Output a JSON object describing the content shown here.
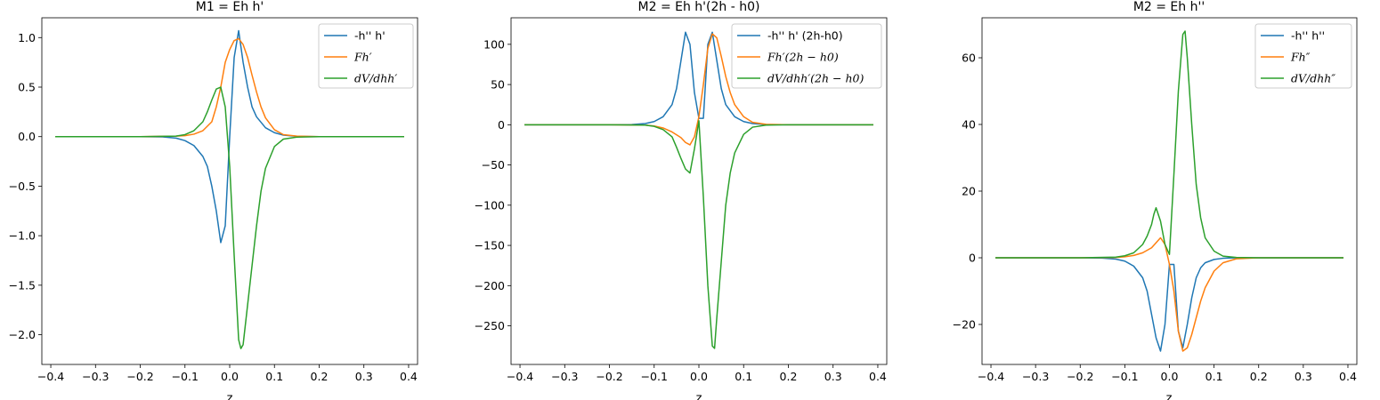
{
  "chart_data": [
    {
      "type": "line",
      "title": "M1 = Eh h'",
      "xlabel": "z",
      "ylabel": "",
      "xlim": [
        -0.42,
        0.42
      ],
      "ylim": [
        -2.3,
        1.2
      ],
      "xticks": [
        -0.4,
        -0.3,
        -0.2,
        -0.1,
        0.0,
        0.1,
        0.2,
        0.3,
        0.4
      ],
      "xtick_labels": [
        "−0.4",
        "−0.3",
        "−0.2",
        "−0.1",
        "0.0",
        "0.1",
        "0.2",
        "0.3",
        "0.4"
      ],
      "yticks": [
        -2.0,
        -1.5,
        -1.0,
        -0.5,
        0.0,
        0.5,
        1.0
      ],
      "ytick_labels": [
        "−2.0",
        "−1.5",
        "−1.0",
        "−0.5",
        "0.0",
        "0.5",
        "1.0"
      ],
      "legend_position": "top-right",
      "grid": false,
      "series": [
        {
          "name": "-h'' h'",
          "color": "#1f77b4",
          "points": [
            [
              -0.39,
              0
            ],
            [
              -0.2,
              0
            ],
            [
              -0.15,
              -0.003
            ],
            [
              -0.12,
              -0.015
            ],
            [
              -0.1,
              -0.04
            ],
            [
              -0.08,
              -0.09
            ],
            [
              -0.06,
              -0.2
            ],
            [
              -0.05,
              -0.3
            ],
            [
              -0.04,
              -0.5
            ],
            [
              -0.03,
              -0.75
            ],
            [
              -0.02,
              -1.07
            ],
            [
              -0.01,
              -0.9
            ],
            [
              0.0,
              0.0
            ],
            [
              0.01,
              0.8
            ],
            [
              0.02,
              1.07
            ],
            [
              0.03,
              0.75
            ],
            [
              0.04,
              0.5
            ],
            [
              0.05,
              0.3
            ],
            [
              0.06,
              0.2
            ],
            [
              0.08,
              0.09
            ],
            [
              0.1,
              0.04
            ],
            [
              0.12,
              0.015
            ],
            [
              0.15,
              0.003
            ],
            [
              0.2,
              0
            ],
            [
              0.39,
              0
            ]
          ]
        },
        {
          "name": "Fh′",
          "color": "#ff7f0e",
          "points": [
            [
              -0.39,
              0
            ],
            [
              -0.2,
              0
            ],
            [
              -0.12,
              0.005
            ],
            [
              -0.1,
              0.01
            ],
            [
              -0.08,
              0.025
            ],
            [
              -0.06,
              0.06
            ],
            [
              -0.04,
              0.15
            ],
            [
              -0.03,
              0.3
            ],
            [
              -0.02,
              0.5
            ],
            [
              -0.01,
              0.75
            ],
            [
              0.0,
              0.88
            ],
            [
              0.01,
              0.97
            ],
            [
              0.02,
              0.99
            ],
            [
              0.03,
              0.93
            ],
            [
              0.04,
              0.8
            ],
            [
              0.05,
              0.62
            ],
            [
              0.06,
              0.45
            ],
            [
              0.07,
              0.3
            ],
            [
              0.08,
              0.19
            ],
            [
              0.1,
              0.07
            ],
            [
              0.12,
              0.02
            ],
            [
              0.15,
              0.005
            ],
            [
              0.2,
              0
            ],
            [
              0.39,
              0
            ]
          ]
        },
        {
          "name": "dV/dhh′",
          "color": "#2ca02c",
          "points": [
            [
              -0.39,
              0
            ],
            [
              -0.2,
              0
            ],
            [
              -0.12,
              0.005
            ],
            [
              -0.1,
              0.02
            ],
            [
              -0.08,
              0.06
            ],
            [
              -0.06,
              0.15
            ],
            [
              -0.05,
              0.25
            ],
            [
              -0.04,
              0.37
            ],
            [
              -0.03,
              0.48
            ],
            [
              -0.02,
              0.5
            ],
            [
              -0.01,
              0.3
            ],
            [
              0.0,
              -0.3
            ],
            [
              0.01,
              -1.2
            ],
            [
              0.02,
              -2.05
            ],
            [
              0.025,
              -2.14
            ],
            [
              0.03,
              -2.1
            ],
            [
              0.04,
              -1.7
            ],
            [
              0.05,
              -1.3
            ],
            [
              0.06,
              -0.9
            ],
            [
              0.07,
              -0.55
            ],
            [
              0.08,
              -0.32
            ],
            [
              0.1,
              -0.1
            ],
            [
              0.12,
              -0.025
            ],
            [
              0.15,
              -0.005
            ],
            [
              0.2,
              0
            ],
            [
              0.39,
              0
            ]
          ]
        }
      ]
    },
    {
      "type": "line",
      "title": "M2 = Eh h'(2h - h0)",
      "xlabel": "z",
      "ylabel": "",
      "xlim": [
        -0.42,
        0.42
      ],
      "ylim": [
        -298,
        133
      ],
      "xticks": [
        -0.4,
        -0.3,
        -0.2,
        -0.1,
        0.0,
        0.1,
        0.2,
        0.3,
        0.4
      ],
      "xtick_labels": [
        "−0.4",
        "−0.3",
        "−0.2",
        "−0.1",
        "0.0",
        "0.1",
        "0.2",
        "0.3",
        "0.4"
      ],
      "yticks": [
        -250,
        -200,
        -150,
        -100,
        -50,
        0,
        50,
        100
      ],
      "ytick_labels": [
        "−250",
        "−200",
        "−150",
        "−100",
        "−50",
        "0",
        "50",
        "100"
      ],
      "legend_position": "top-right",
      "grid": false,
      "series": [
        {
          "name": "-h'' h' (2h-h0)",
          "color": "#1f77b4",
          "points": [
            [
              -0.39,
              0
            ],
            [
              -0.2,
              0
            ],
            [
              -0.15,
              0.3
            ],
            [
              -0.12,
              1.5
            ],
            [
              -0.1,
              4
            ],
            [
              -0.08,
              10
            ],
            [
              -0.06,
              25
            ],
            [
              -0.05,
              45
            ],
            [
              -0.04,
              80
            ],
            [
              -0.03,
              115
            ],
            [
              -0.02,
              100
            ],
            [
              -0.01,
              40
            ],
            [
              0.0,
              8
            ],
            [
              0.01,
              8
            ],
            [
              0.02,
              100
            ],
            [
              0.03,
              115
            ],
            [
              0.04,
              80
            ],
            [
              0.05,
              45
            ],
            [
              0.06,
              25
            ],
            [
              0.08,
              10
            ],
            [
              0.1,
              4
            ],
            [
              0.12,
              1.5
            ],
            [
              0.15,
              0.3
            ],
            [
              0.2,
              0
            ],
            [
              0.39,
              0
            ]
          ]
        },
        {
          "name": "Fh′(2h − h0)",
          "color": "#ff7f0e",
          "points": [
            [
              -0.39,
              0
            ],
            [
              -0.2,
              0
            ],
            [
              -0.12,
              -0.5
            ],
            [
              -0.1,
              -1.5
            ],
            [
              -0.08,
              -4
            ],
            [
              -0.06,
              -9
            ],
            [
              -0.04,
              -16
            ],
            [
              -0.03,
              -22
            ],
            [
              -0.02,
              -25
            ],
            [
              -0.01,
              -15
            ],
            [
              0.0,
              10
            ],
            [
              0.01,
              50
            ],
            [
              0.02,
              95
            ],
            [
              0.03,
              113
            ],
            [
              0.04,
              108
            ],
            [
              0.05,
              85
            ],
            [
              0.06,
              60
            ],
            [
              0.07,
              40
            ],
            [
              0.08,
              25
            ],
            [
              0.1,
              10
            ],
            [
              0.12,
              3
            ],
            [
              0.15,
              0.5
            ],
            [
              0.2,
              0
            ],
            [
              0.39,
              0
            ]
          ]
        },
        {
          "name": "dV/dhh′(2h − h0)",
          "color": "#2ca02c",
          "points": [
            [
              -0.39,
              0
            ],
            [
              -0.2,
              0
            ],
            [
              -0.12,
              -0.5
            ],
            [
              -0.1,
              -2
            ],
            [
              -0.08,
              -6
            ],
            [
              -0.06,
              -15
            ],
            [
              -0.05,
              -28
            ],
            [
              -0.04,
              -42
            ],
            [
              -0.03,
              -55
            ],
            [
              -0.02,
              -60
            ],
            [
              -0.01,
              -30
            ],
            [
              0.0,
              5
            ],
            [
              0.01,
              -90
            ],
            [
              0.02,
              -200
            ],
            [
              0.03,
              -275
            ],
            [
              0.035,
              -278
            ],
            [
              0.04,
              -240
            ],
            [
              0.05,
              -170
            ],
            [
              0.06,
              -100
            ],
            [
              0.07,
              -60
            ],
            [
              0.08,
              -35
            ],
            [
              0.1,
              -12
            ],
            [
              0.12,
              -3
            ],
            [
              0.15,
              -0.5
            ],
            [
              0.2,
              0
            ],
            [
              0.39,
              0
            ]
          ]
        }
      ]
    },
    {
      "type": "line",
      "title": "M2 = Eh h''",
      "xlabel": "z",
      "ylabel": "",
      "xlim": [
        -0.42,
        0.42
      ],
      "ylim": [
        -32,
        72
      ],
      "xticks": [
        -0.4,
        -0.3,
        -0.2,
        -0.1,
        0.0,
        0.1,
        0.2,
        0.3,
        0.4
      ],
      "xtick_labels": [
        "−0.4",
        "−0.3",
        "−0.2",
        "−0.1",
        "0.0",
        "0.1",
        "0.2",
        "0.3",
        "0.4"
      ],
      "yticks": [
        -20,
        0,
        20,
        40,
        60
      ],
      "ytick_labels": [
        "−20",
        "0",
        "20",
        "40",
        "60"
      ],
      "legend_position": "top-right",
      "grid": false,
      "series": [
        {
          "name": "-h'' h''",
          "color": "#1f77b4",
          "points": [
            [
              -0.39,
              0
            ],
            [
              -0.2,
              0
            ],
            [
              -0.15,
              -0.1
            ],
            [
              -0.12,
              -0.4
            ],
            [
              -0.1,
              -1
            ],
            [
              -0.08,
              -2.5
            ],
            [
              -0.06,
              -6
            ],
            [
              -0.05,
              -10
            ],
            [
              -0.04,
              -17
            ],
            [
              -0.03,
              -24
            ],
            [
              -0.02,
              -28
            ],
            [
              -0.01,
              -20
            ],
            [
              0.0,
              -2
            ],
            [
              0.01,
              -2
            ],
            [
              0.02,
              -22
            ],
            [
              0.03,
              -27
            ],
            [
              0.04,
              -20
            ],
            [
              0.05,
              -12
            ],
            [
              0.06,
              -6
            ],
            [
              0.07,
              -3
            ],
            [
              0.08,
              -1.5
            ],
            [
              0.1,
              -0.5
            ],
            [
              0.12,
              -0.15
            ],
            [
              0.15,
              0
            ],
            [
              0.2,
              0
            ],
            [
              0.39,
              0
            ]
          ]
        },
        {
          "name": "Fh″",
          "color": "#ff7f0e",
          "points": [
            [
              -0.39,
              0
            ],
            [
              -0.2,
              0
            ],
            [
              -0.12,
              0.1
            ],
            [
              -0.1,
              0.3
            ],
            [
              -0.08,
              0.7
            ],
            [
              -0.06,
              1.5
            ],
            [
              -0.04,
              3
            ],
            [
              -0.03,
              4.5
            ],
            [
              -0.02,
              6
            ],
            [
              -0.01,
              4
            ],
            [
              0.0,
              -2
            ],
            [
              0.01,
              -10
            ],
            [
              0.02,
              -22
            ],
            [
              0.03,
              -28
            ],
            [
              0.04,
              -27
            ],
            [
              0.05,
              -23
            ],
            [
              0.06,
              -18
            ],
            [
              0.07,
              -13
            ],
            [
              0.08,
              -9
            ],
            [
              0.1,
              -4
            ],
            [
              0.12,
              -1.5
            ],
            [
              0.15,
              -0.3
            ],
            [
              0.2,
              0
            ],
            [
              0.39,
              0
            ]
          ]
        },
        {
          "name": "dV/dhh″",
          "color": "#2ca02c",
          "points": [
            [
              -0.39,
              0
            ],
            [
              -0.2,
              0
            ],
            [
              -0.12,
              0.2
            ],
            [
              -0.1,
              0.6
            ],
            [
              -0.08,
              1.5
            ],
            [
              -0.06,
              4
            ],
            [
              -0.05,
              6.5
            ],
            [
              -0.04,
              10
            ],
            [
              -0.035,
              13
            ],
            [
              -0.03,
              15
            ],
            [
              -0.02,
              11
            ],
            [
              -0.01,
              4
            ],
            [
              0.0,
              1
            ],
            [
              0.01,
              25
            ],
            [
              0.02,
              50
            ],
            [
              0.03,
              67
            ],
            [
              0.035,
              68
            ],
            [
              0.04,
              60
            ],
            [
              0.05,
              40
            ],
            [
              0.06,
              22
            ],
            [
              0.07,
              12
            ],
            [
              0.08,
              6
            ],
            [
              0.1,
              2
            ],
            [
              0.12,
              0.5
            ],
            [
              0.15,
              0.1
            ],
            [
              0.2,
              0
            ],
            [
              0.39,
              0
            ]
          ]
        }
      ]
    }
  ]
}
